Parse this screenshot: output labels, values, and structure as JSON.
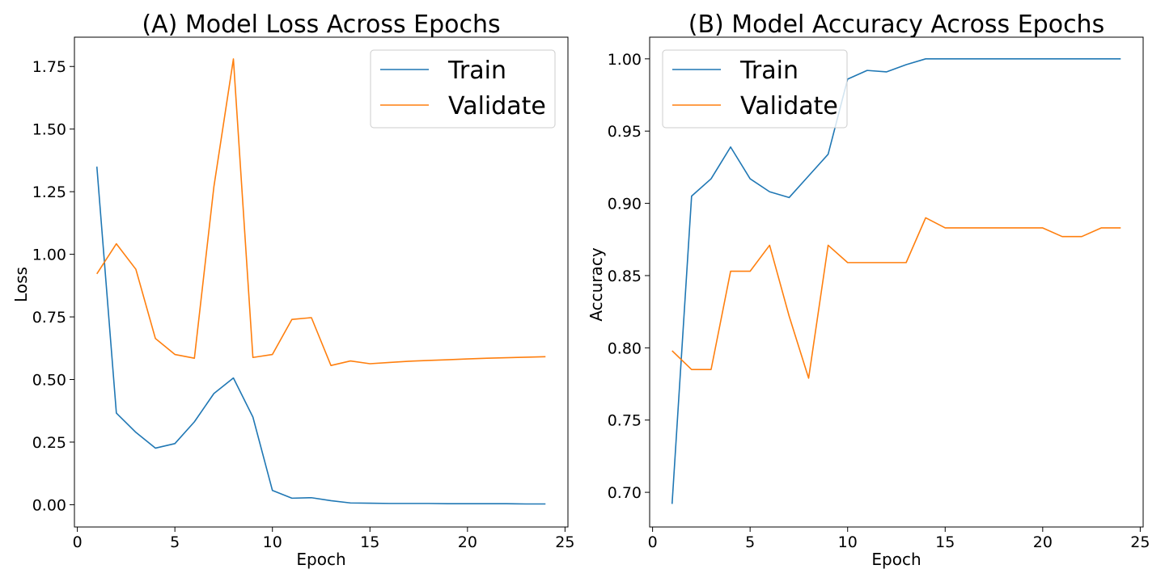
{
  "colors": {
    "train": "#1f77b4",
    "validate": "#ff7f0e",
    "axes": "#000000",
    "legend_border": "#cccccc"
  },
  "chart_data": [
    {
      "type": "line",
      "title": "(A) Model Loss Across Epochs",
      "xlabel": "Epoch",
      "ylabel": "Loss",
      "xlim": [
        -0.15,
        25.15
      ],
      "ylim": [
        -0.089,
        1.867
      ],
      "xticks": [
        0,
        5,
        10,
        15,
        20,
        25
      ],
      "xtick_labels": [
        "0",
        "5",
        "10",
        "15",
        "20",
        "25"
      ],
      "yticks": [
        0.0,
        0.25,
        0.5,
        0.75,
        1.0,
        1.25,
        1.5,
        1.75
      ],
      "ytick_labels": [
        "0.00",
        "0.25",
        "0.50",
        "0.75",
        "1.00",
        "1.25",
        "1.50",
        "1.75"
      ],
      "grid": false,
      "legend_position": "top-right",
      "x": [
        1,
        2,
        3,
        4,
        5,
        6,
        7,
        8,
        9,
        10,
        11,
        12,
        13,
        14,
        15,
        16,
        17,
        18,
        19,
        20,
        21,
        22,
        23,
        24
      ],
      "series": [
        {
          "name": "Train",
          "color": "#1f77b4",
          "values": [
            1.35,
            0.366,
            0.289,
            0.226,
            0.244,
            0.331,
            0.444,
            0.506,
            0.35,
            0.057,
            0.026,
            0.028,
            0.016,
            0.007,
            0.006,
            0.005,
            0.005,
            0.005,
            0.004,
            0.004,
            0.004,
            0.004,
            0.003,
            0.003
          ]
        },
        {
          "name": "Validate",
          "color": "#ff7f0e",
          "values": [
            0.922,
            1.042,
            0.94,
            0.664,
            0.6,
            0.585,
            1.27,
            1.78,
            0.588,
            0.6,
            0.74,
            0.747,
            0.556,
            0.574,
            0.563,
            0.568,
            0.573,
            0.576,
            0.579,
            0.582,
            0.585,
            0.587,
            0.589,
            0.591
          ]
        }
      ]
    },
    {
      "type": "line",
      "title": "(B) Model Accuracy Across Epochs",
      "xlabel": "Epoch",
      "ylabel": "Accuracy",
      "xlim": [
        -0.15,
        25.15
      ],
      "ylim": [
        0.676,
        1.015
      ],
      "xticks": [
        0,
        5,
        10,
        15,
        20,
        25
      ],
      "xtick_labels": [
        "0",
        "5",
        "10",
        "15",
        "20",
        "25"
      ],
      "yticks": [
        0.7,
        0.75,
        0.8,
        0.85,
        0.9,
        0.95,
        1.0
      ],
      "ytick_labels": [
        "0.70",
        "0.75",
        "0.80",
        "0.85",
        "0.90",
        "0.95",
        "1.00"
      ],
      "grid": false,
      "legend_position": "top-left",
      "x": [
        1,
        2,
        3,
        4,
        5,
        6,
        7,
        8,
        9,
        10,
        11,
        12,
        13,
        14,
        15,
        16,
        17,
        18,
        19,
        20,
        21,
        22,
        23,
        24
      ],
      "series": [
        {
          "name": "Train",
          "color": "#1f77b4",
          "values": [
            0.692,
            0.905,
            0.917,
            0.939,
            0.917,
            0.908,
            0.904,
            0.919,
            0.934,
            0.986,
            0.992,
            0.991,
            0.996,
            1.0,
            1.0,
            1.0,
            1.0,
            1.0,
            1.0,
            1.0,
            1.0,
            1.0,
            1.0,
            1.0
          ]
        },
        {
          "name": "Validate",
          "color": "#ff7f0e",
          "values": [
            0.798,
            0.785,
            0.785,
            0.853,
            0.853,
            0.871,
            0.822,
            0.779,
            0.871,
            0.859,
            0.859,
            0.859,
            0.859,
            0.89,
            0.883,
            0.883,
            0.883,
            0.883,
            0.883,
            0.883,
            0.877,
            0.877,
            0.883,
            0.883
          ]
        }
      ]
    }
  ]
}
